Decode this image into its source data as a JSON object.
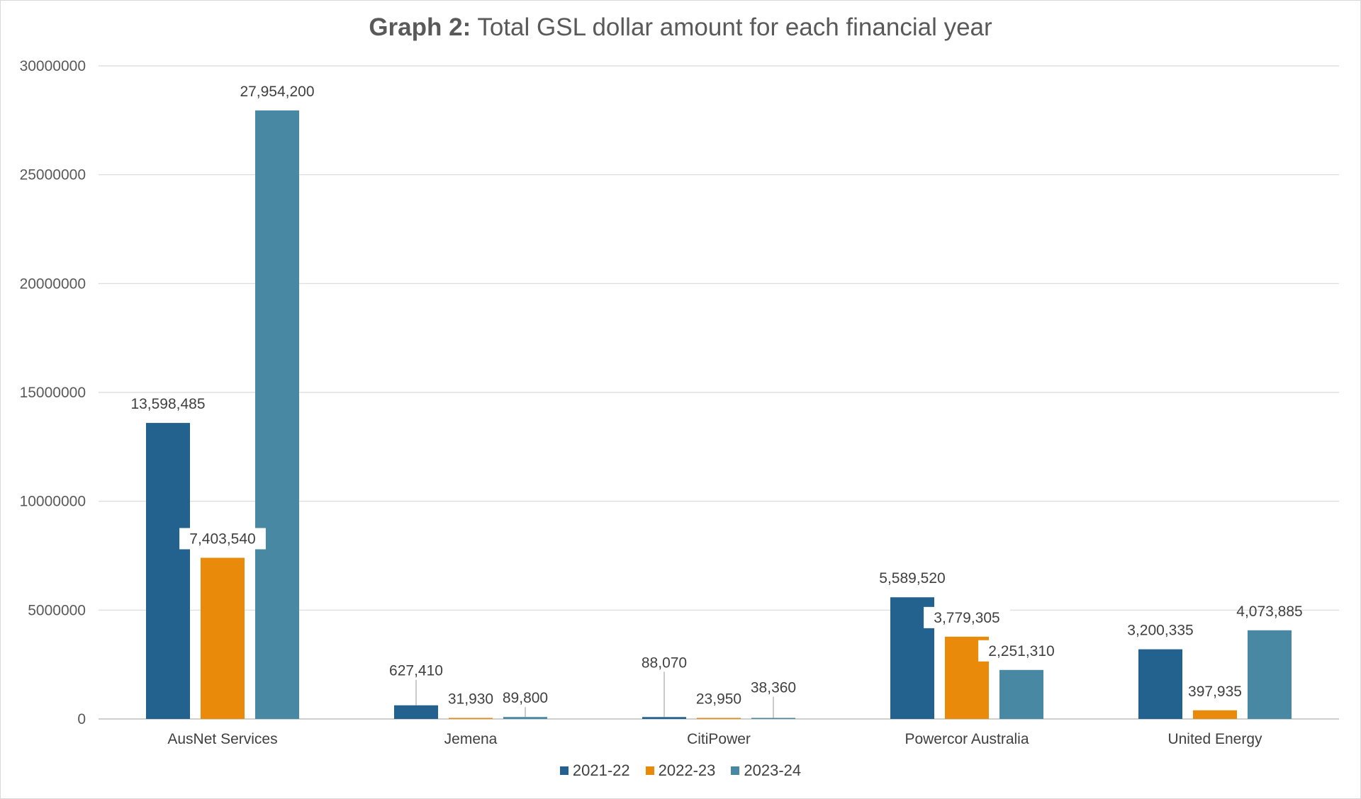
{
  "chart_data": {
    "type": "bar",
    "title_bold": "Graph 2:",
    "title_rest": " Total GSL dollar amount for each financial year",
    "xlabel": "",
    "ylabel": "",
    "ylim": [
      0,
      30000000
    ],
    "y_ticks": [
      0,
      5000000,
      10000000,
      15000000,
      20000000,
      25000000,
      30000000
    ],
    "y_tick_labels": [
      "0",
      "5000000",
      "10000000",
      "15000000",
      "20000000",
      "25000000",
      "30000000"
    ],
    "grid": true,
    "legend_position": "bottom",
    "categories": [
      "AusNet Services",
      "Jemena",
      "CitiPower",
      "Powercor Australia",
      "United Energy"
    ],
    "series": [
      {
        "name": "2021-22",
        "color": "#23618f",
        "values": [
          13598485,
          627410,
          88070,
          5589520,
          3200335
        ],
        "labels": [
          "13,598,485",
          "627,410",
          "88,070",
          "5,589,520",
          "3,200,335"
        ]
      },
      {
        "name": "2022-23",
        "color": "#e98a0b",
        "values": [
          7403540,
          31930,
          23950,
          3779305,
          397935
        ],
        "labels": [
          "7,403,540",
          "31,930",
          "23,950",
          "3,779,305",
          "397,935"
        ]
      },
      {
        "name": "2023-24",
        "color": "#4888a2",
        "values": [
          27954200,
          89800,
          38360,
          2251310,
          4073885
        ],
        "labels": [
          "27,954,200",
          "89,800",
          "38,360",
          "2,251,310",
          "4,073,885"
        ]
      }
    ]
  }
}
